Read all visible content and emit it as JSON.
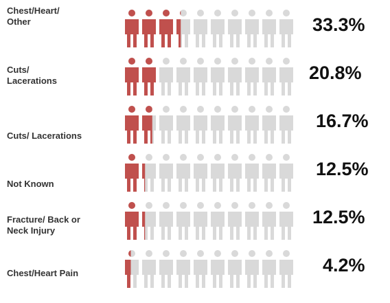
{
  "chart_data": {
    "type": "pictogram",
    "categories": [
      "Chest/Heart/ Other",
      "Cuts/ Lacerations",
      "Cuts/ Lacerations",
      "Not Known",
      "Fracture/ Back or Neck Injury",
      "Chest/Heart Pain"
    ],
    "values": [
      33.3,
      20.8,
      16.7,
      12.5,
      12.5,
      4.2
    ],
    "value_labels": [
      "33.3%",
      "20.8%",
      "16.7%",
      "12.5%",
      "12.5%",
      "4.2%"
    ],
    "xlim": [
      0,
      100
    ],
    "color": "#c0504d",
    "empty_color": "#d9d9d9"
  }
}
